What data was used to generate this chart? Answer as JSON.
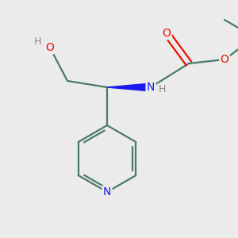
{
  "bg_color": "#ebebeb",
  "bond_color": "#4a7a6a",
  "bond_width": 1.6,
  "atom_colors": {
    "O": "#ee1100",
    "N": "#1a1aee",
    "H_gray": "#888888",
    "C": "#4a7a6a"
  },
  "figsize": [
    3.0,
    3.0
  ],
  "dpi": 100
}
